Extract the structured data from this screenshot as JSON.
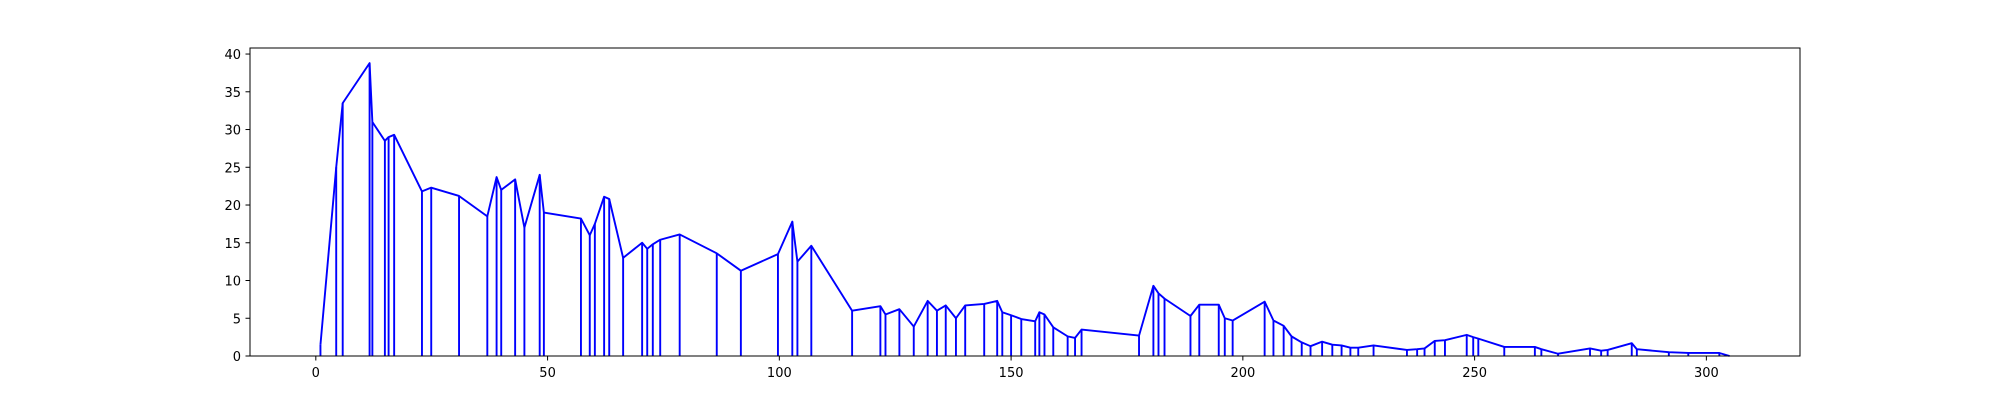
{
  "chart_data": {
    "type": "line",
    "color": "#0000ff",
    "stems": true,
    "x": [
      1,
      4.4,
      5.8,
      11.6,
      12.2,
      14.9,
      15.7,
      16.9,
      22.9,
      24.9,
      30.9,
      37,
      39,
      40,
      43,
      45,
      48.3,
      49.2,
      57.2,
      59.1,
      60.2,
      62.2,
      63.3,
      66.3,
      70.4,
      71.5,
      72.7,
      74.3,
      78.5,
      86.5,
      91.7,
      99.7,
      102.8,
      103.9,
      106.9,
      115.7,
      121.8,
      122.9,
      125.9,
      129,
      132,
      134,
      135.9,
      138.1,
      140.1,
      144.2,
      147,
      148.1,
      150,
      152.2,
      155.2,
      156.1,
      157.2,
      159.1,
      162.2,
      163.8,
      165.2,
      177.6,
      180.7,
      181.8,
      183.1,
      188.7,
      190.6,
      194.8,
      196.1,
      197.8,
      204.7,
      206.6,
      208.8,
      210.5,
      212.7,
      214.6,
      217.1,
      219.3,
      221.3,
      223.2,
      224.9,
      228.2,
      235.4,
      237.6,
      239.2,
      241.4,
      243.6,
      248.3,
      249.7,
      250.8,
      256.4,
      263,
      264.4,
      268,
      274.9,
      277.3,
      278.7,
      283.9,
      285,
      291.9,
      296.1,
      302.8,
      305
    ],
    "values": [
      1.5,
      25,
      33.5,
      38.8,
      31,
      28.5,
      29,
      29.3,
      21.8,
      22.3,
      21.2,
      18.5,
      23.7,
      22,
      23.4,
      17,
      24,
      19,
      18.2,
      16,
      17.5,
      21.1,
      20.8,
      13,
      15,
      14.2,
      14.8,
      15.4,
      16.1,
      13.6,
      11.3,
      13.5,
      17.8,
      12.5,
      14.6,
      6,
      6.6,
      5.5,
      6.2,
      3.9,
      7.3,
      6,
      6.7,
      5,
      6.7,
      6.9,
      7.3,
      5.8,
      5.4,
      4.9,
      4.6,
      5.8,
      5.5,
      3.8,
      2.6,
      2.4,
      3.5,
      2.7,
      9.3,
      8.3,
      7.6,
      5.3,
      6.8,
      6.8,
      5,
      4.7,
      7.2,
      4.7,
      4,
      2.6,
      1.8,
      1.3,
      1.9,
      1.5,
      1.4,
      1.1,
      1.1,
      1.4,
      0.8,
      0.9,
      1,
      2,
      2.1,
      2.8,
      2.5,
      2.3,
      1.2,
      1.2,
      0.9,
      0.3,
      1,
      0.7,
      0.8,
      1.7,
      0.9,
      0.5,
      0.4,
      0.4,
      0
    ],
    "xlim": [
      -14.2,
      320.2
    ],
    "ylim": [
      0,
      40.8
    ],
    "xticks": [
      0,
      50,
      100,
      150,
      200,
      250,
      300
    ],
    "yticks": [
      0,
      5,
      10,
      15,
      20,
      25,
      30,
      35,
      40
    ]
  }
}
